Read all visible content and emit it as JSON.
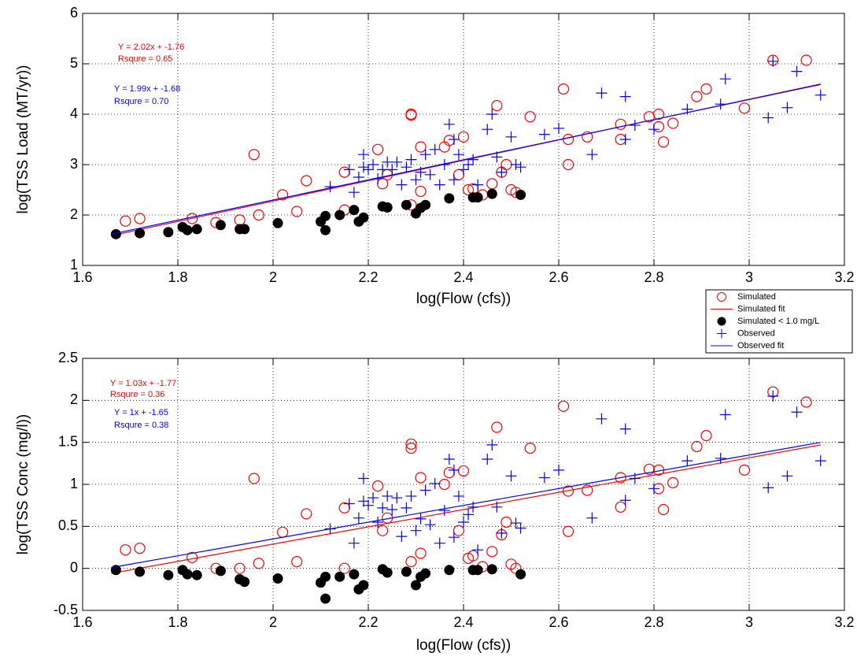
{
  "chart_data": [
    {
      "type": "scatter",
      "xlabel": "log(Flow (cfs))",
      "ylabel": "log(TSS Load (MT/yr))",
      "xlim": [
        1.6,
        3.2
      ],
      "xticks": [
        1.6,
        1.8,
        2,
        2.2,
        2.4,
        2.6,
        2.8,
        3,
        3.2
      ],
      "ylim": [
        1,
        6
      ],
      "yticks": [
        1,
        2,
        3,
        4,
        5,
        6
      ],
      "grid": true,
      "legend": "lower right outside",
      "annotations": [
        {
          "text": "Y = 2.02x + -1.76",
          "color": "#ff0000"
        },
        {
          "text": "Rsqure = 0.65",
          "color": "#ff0000"
        },
        {
          "text": "Y = 1.99x + -1.68",
          "color": "#0000ff"
        },
        {
          "text": "Rsqure = 0.70",
          "color": "#0000ff"
        }
      ],
      "series": [
        {
          "name": "Simulated",
          "color": "#ff0000",
          "marker": "circle",
          "x": [
            1.69,
            1.72,
            1.83,
            1.88,
            1.93,
            1.96,
            1.97,
            2.02,
            2.05,
            2.07,
            2.15,
            2.15,
            2.22,
            2.23,
            2.24,
            2.29,
            2.29,
            2.29,
            2.31,
            2.31,
            2.36,
            2.37,
            2.39,
            2.4,
            2.41,
            2.42,
            2.44,
            2.46,
            2.47,
            2.48,
            2.49,
            2.5,
            2.51,
            2.54,
            2.61,
            2.62,
            2.62,
            2.66,
            2.73,
            2.73,
            2.79,
            2.81,
            2.81,
            2.82,
            2.84,
            2.89,
            2.91,
            2.99,
            3.05,
            3.12
          ],
          "values": [
            1.88,
            1.93,
            1.93,
            1.85,
            1.9,
            3.2,
            2.0,
            2.4,
            2.07,
            2.68,
            2.85,
            2.1,
            3.3,
            2.62,
            2.8,
            3.98,
            4.0,
            2.2,
            3.35,
            2.47,
            3.35,
            3.48,
            2.8,
            3.55,
            2.5,
            2.52,
            2.4,
            2.62,
            4.17,
            2.85,
            3.0,
            2.5,
            2.45,
            3.95,
            4.5,
            3.0,
            3.5,
            3.55,
            3.8,
            3.5,
            3.95,
            4.0,
            3.75,
            3.45,
            3.82,
            4.35,
            4.5,
            4.12,
            5.07,
            5.07
          ]
        },
        {
          "name": "Simulated fit",
          "color": "#ff0000",
          "marker": "line",
          "x": [
            1.66,
            3.15
          ],
          "values": [
            1.59,
            4.6
          ]
        },
        {
          "name": "Simulated < 1.0 mg/L",
          "color": "#000000",
          "marker": "dot",
          "x": [
            1.67,
            1.72,
            1.78,
            1.81,
            1.82,
            1.84,
            1.89,
            1.93,
            1.94,
            2.01,
            2.1,
            2.11,
            2.11,
            2.14,
            2.17,
            2.18,
            2.19,
            2.23,
            2.24,
            2.28,
            2.3,
            2.31,
            2.32,
            2.37,
            2.42,
            2.43,
            2.46,
            2.52
          ],
          "values": [
            1.62,
            1.64,
            1.66,
            1.76,
            1.7,
            1.72,
            1.8,
            1.72,
            1.72,
            1.84,
            1.87,
            1.98,
            1.7,
            2.0,
            2.1,
            1.87,
            1.95,
            2.17,
            2.15,
            2.2,
            2.03,
            2.14,
            2.2,
            2.33,
            2.35,
            2.35,
            2.42,
            2.4
          ]
        },
        {
          "name": "Observed",
          "color": "#0000ff",
          "marker": "plus",
          "x": [
            2.12,
            2.16,
            2.17,
            2.18,
            2.19,
            2.19,
            2.2,
            2.21,
            2.22,
            2.23,
            2.24,
            2.25,
            2.26,
            2.27,
            2.28,
            2.29,
            2.3,
            2.31,
            2.32,
            2.33,
            2.34,
            2.35,
            2.36,
            2.37,
            2.38,
            2.38,
            2.39,
            2.4,
            2.41,
            2.42,
            2.43,
            2.45,
            2.46,
            2.47,
            2.48,
            2.5,
            2.51,
            2.52,
            2.57,
            2.6,
            2.67,
            2.69,
            2.74,
            2.74,
            2.76,
            2.8,
            2.87,
            2.94,
            2.95,
            3.04,
            3.05,
            3.08,
            3.1,
            3.15
          ],
          "values": [
            2.56,
            2.9,
            2.45,
            2.75,
            3.2,
            2.95,
            2.9,
            3.0,
            2.72,
            2.9,
            3.05,
            2.9,
            3.05,
            2.6,
            2.95,
            3.1,
            2.7,
            2.85,
            3.2,
            2.8,
            3.3,
            2.6,
            3.0,
            3.8,
            3.5,
            2.7,
            3.2,
            2.9,
            3.0,
            3.1,
            2.6,
            3.7,
            4.0,
            3.15,
            2.85,
            3.55,
            3.0,
            2.95,
            3.6,
            3.72,
            3.2,
            4.42,
            4.35,
            3.5,
            3.78,
            3.7,
            4.1,
            4.2,
            4.7,
            3.93,
            5.05,
            4.13,
            4.85,
            4.38
          ]
        },
        {
          "name": "Observed fit",
          "color": "#0000ff",
          "marker": "line",
          "x": [
            1.66,
            3.15
          ],
          "values": [
            1.62,
            4.59
          ]
        }
      ]
    },
    {
      "type": "scatter",
      "xlabel": "log(Flow (cfs))",
      "ylabel": "log(TSS Conc (mg/l))",
      "xlim": [
        1.6,
        3.2
      ],
      "xticks": [
        1.6,
        1.8,
        2,
        2.2,
        2.4,
        2.6,
        2.8,
        3,
        3.2
      ],
      "ylim": [
        -0.5,
        2.5
      ],
      "yticks": [
        -0.5,
        0,
        0.5,
        1,
        1.5,
        2,
        2.5
      ],
      "grid": true,
      "annotations": [
        {
          "text": "Y = 1.03x + -1.77",
          "color": "#ff0000"
        },
        {
          "text": "Rsqure = 0.36",
          "color": "#ff0000"
        },
        {
          "text": "Y = 1x + -1.65",
          "color": "#0000ff"
        },
        {
          "text": "Rsqure = 0.38",
          "color": "#0000ff"
        }
      ],
      "series": [
        {
          "color": "#ff0000",
          "marker": "circle",
          "x": [
            1.69,
            1.72,
            1.83,
            1.88,
            1.93,
            1.96,
            1.97,
            2.02,
            2.05,
            2.07,
            2.15,
            2.15,
            2.22,
            2.23,
            2.24,
            2.29,
            2.29,
            2.29,
            2.31,
            2.31,
            2.36,
            2.37,
            2.39,
            2.4,
            2.41,
            2.42,
            2.44,
            2.46,
            2.47,
            2.48,
            2.49,
            2.5,
            2.51,
            2.54,
            2.61,
            2.62,
            2.62,
            2.66,
            2.73,
            2.73,
            2.79,
            2.81,
            2.81,
            2.82,
            2.84,
            2.89,
            2.91,
            2.99,
            3.05,
            3.12
          ],
          "values": [
            0.22,
            0.24,
            0.13,
            0.0,
            0.0,
            1.07,
            0.06,
            0.43,
            0.08,
            0.65,
            0.72,
            0.0,
            0.98,
            0.45,
            0.6,
            1.48,
            1.43,
            0.08,
            1.08,
            0.18,
            1.0,
            1.14,
            0.45,
            1.16,
            0.12,
            0.15,
            0.02,
            0.2,
            1.68,
            0.4,
            0.55,
            0.05,
            0.0,
            1.43,
            1.93,
            0.44,
            0.92,
            0.93,
            1.08,
            0.73,
            1.18,
            1.17,
            0.95,
            0.7,
            1.02,
            1.45,
            1.58,
            1.17,
            2.1,
            1.98
          ]
        },
        {
          "color": "#ff0000",
          "marker": "line",
          "x": [
            1.66,
            3.15
          ],
          "values": [
            -0.06,
            1.47
          ]
        },
        {
          "color": "#000000",
          "marker": "dot",
          "x": [
            1.67,
            1.72,
            1.78,
            1.81,
            1.82,
            1.84,
            1.89,
            1.93,
            1.94,
            2.01,
            2.1,
            2.11,
            2.11,
            2.14,
            2.17,
            2.18,
            2.19,
            2.23,
            2.24,
            2.28,
            2.3,
            2.31,
            2.32,
            2.37,
            2.42,
            2.43,
            2.46,
            2.52
          ],
          "values": [
            -0.02,
            -0.04,
            -0.08,
            -0.02,
            -0.07,
            -0.08,
            -0.03,
            -0.13,
            -0.16,
            -0.12,
            -0.17,
            -0.1,
            -0.36,
            -0.1,
            -0.07,
            -0.25,
            -0.2,
            -0.01,
            -0.05,
            -0.04,
            -0.2,
            -0.1,
            -0.06,
            -0.02,
            -0.02,
            -0.02,
            -0.01,
            -0.07
          ]
        },
        {
          "color": "#0000ff",
          "marker": "plus",
          "x": [
            2.12,
            2.16,
            2.17,
            2.18,
            2.19,
            2.19,
            2.2,
            2.21,
            2.22,
            2.23,
            2.24,
            2.25,
            2.26,
            2.27,
            2.28,
            2.29,
            2.3,
            2.31,
            2.32,
            2.33,
            2.34,
            2.35,
            2.36,
            2.37,
            2.38,
            2.38,
            2.39,
            2.4,
            2.41,
            2.42,
            2.43,
            2.45,
            2.46,
            2.47,
            2.48,
            2.5,
            2.51,
            2.52,
            2.57,
            2.6,
            2.67,
            2.69,
            2.74,
            2.74,
            2.76,
            2.8,
            2.87,
            2.94,
            2.95,
            3.04,
            3.05,
            3.08,
            3.1,
            3.15
          ],
          "values": [
            0.47,
            0.77,
            0.3,
            0.6,
            1.07,
            0.8,
            0.75,
            0.84,
            0.55,
            0.72,
            0.86,
            0.7,
            0.84,
            0.38,
            0.72,
            0.86,
            0.45,
            0.59,
            0.93,
            0.52,
            1.01,
            0.3,
            0.69,
            1.3,
            1.17,
            0.37,
            0.86,
            0.55,
            0.64,
            0.73,
            0.22,
            1.3,
            1.47,
            0.73,
            0.42,
            1.1,
            0.54,
            0.48,
            1.08,
            1.17,
            0.6,
            1.78,
            1.66,
            0.81,
            1.07,
            0.95,
            1.28,
            1.31,
            1.83,
            0.96,
            2.05,
            1.1,
            1.86,
            1.28
          ]
        },
        {
          "color": "#0000ff",
          "marker": "line",
          "x": [
            1.66,
            3.15
          ],
          "values": [
            0.01,
            1.5
          ]
        }
      ]
    }
  ]
}
